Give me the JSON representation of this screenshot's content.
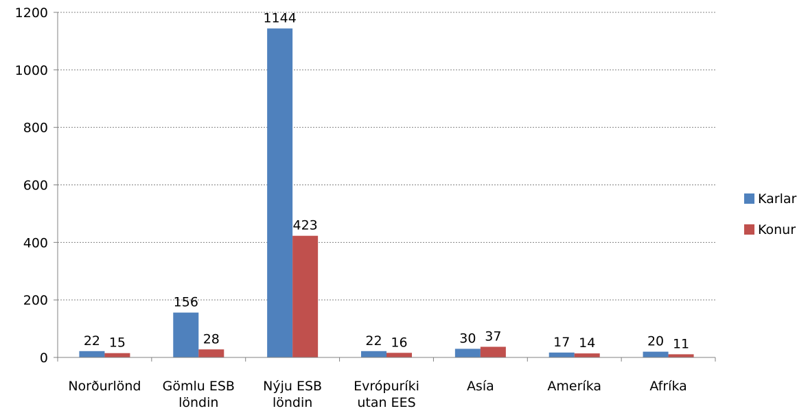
{
  "chart_data": {
    "type": "bar",
    "categories": [
      [
        "Norðurlönd"
      ],
      [
        "Gömlu ESB",
        "löndin"
      ],
      [
        "Nýju ESB",
        "löndin"
      ],
      [
        "Evrópuríki",
        "utan EES"
      ],
      [
        "Asía"
      ],
      [
        "Ameríka"
      ],
      [
        "Afríka"
      ]
    ],
    "series": [
      {
        "name": "Karlar",
        "color": "#4F81BD",
        "values": [
          22,
          156,
          1144,
          22,
          30,
          17,
          20
        ]
      },
      {
        "name": "Konur",
        "color": "#C0504D",
        "values": [
          15,
          28,
          423,
          16,
          37,
          14,
          11
        ]
      }
    ],
    "y_ticks": [
      "0",
      "200",
      "400",
      "600",
      "800",
      "1000",
      "1200"
    ],
    "ylim": [
      0,
      1200
    ],
    "grid": "horizontal dotted",
    "legend_position": "right"
  }
}
